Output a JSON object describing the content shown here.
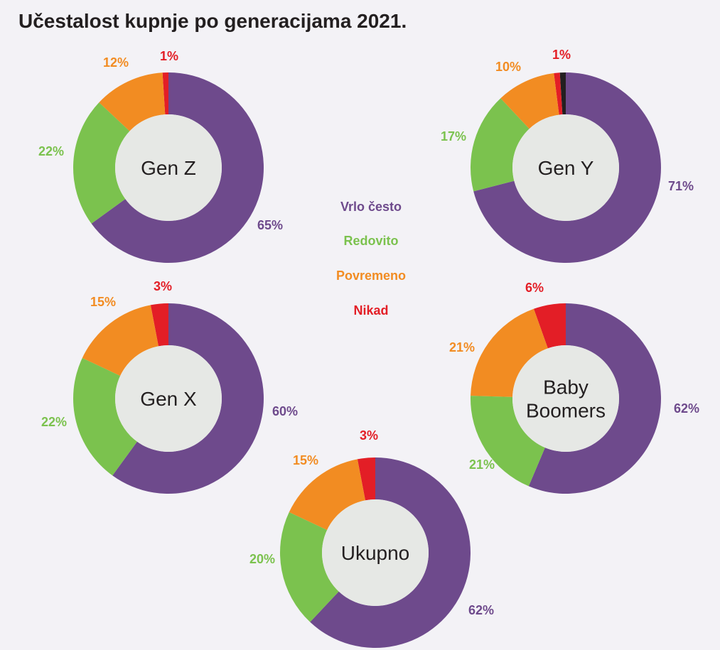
{
  "title": "Učestalost kupnje po generacijama 2021.",
  "colors": {
    "Vrlo često": "#6e4a8c",
    "Redovito": "#7bc24e",
    "Povremeno": "#f28c22",
    "Nikad": "#e31e26",
    "remainder": "#231f20",
    "center": "#e6e8e5",
    "background": "#f3f2f6"
  },
  "legend": [
    "Vrlo često",
    "Redovito",
    "Povremeno",
    "Nikad"
  ],
  "chart_data": [
    {
      "type": "pie",
      "name": "Gen Z",
      "center_label": [
        "Gen Z"
      ],
      "categories": [
        "Vrlo često",
        "Redovito",
        "Povremeno",
        "Nikad"
      ],
      "values": [
        65,
        22,
        12,
        1
      ],
      "labels": [
        "65%",
        "22%",
        "12%",
        "1%"
      ]
    },
    {
      "type": "pie",
      "name": "Gen Y",
      "center_label": [
        "Gen Y"
      ],
      "categories": [
        "Vrlo često",
        "Redovito",
        "Povremeno",
        "Nikad"
      ],
      "values": [
        71,
        17,
        10,
        1
      ],
      "labels": [
        "71%",
        "17%",
        "10%",
        "1%"
      ]
    },
    {
      "type": "pie",
      "name": "Gen X",
      "center_label": [
        "Gen X"
      ],
      "categories": [
        "Vrlo često",
        "Redovito",
        "Povremeno",
        "Nikad"
      ],
      "values": [
        60,
        22,
        15,
        3
      ],
      "labels": [
        "60%",
        "22%",
        "15%",
        "3%"
      ]
    },
    {
      "type": "pie",
      "name": "Baby Boomers",
      "center_label": [
        "Baby",
        "Boomers"
      ],
      "categories": [
        "Vrlo često",
        "Redovito",
        "Povremeno",
        "Nikad"
      ],
      "values": [
        62,
        21,
        21,
        6
      ],
      "labels": [
        "62%",
        "21%",
        "21%",
        "6%"
      ]
    },
    {
      "type": "pie",
      "name": "Ukupno",
      "center_label": [
        "Ukupno"
      ],
      "categories": [
        "Vrlo često",
        "Redovito",
        "Povremeno",
        "Nikad"
      ],
      "values": [
        62,
        20,
        15,
        3
      ],
      "labels": [
        "62%",
        "20%",
        "15%",
        "3%"
      ]
    }
  ]
}
